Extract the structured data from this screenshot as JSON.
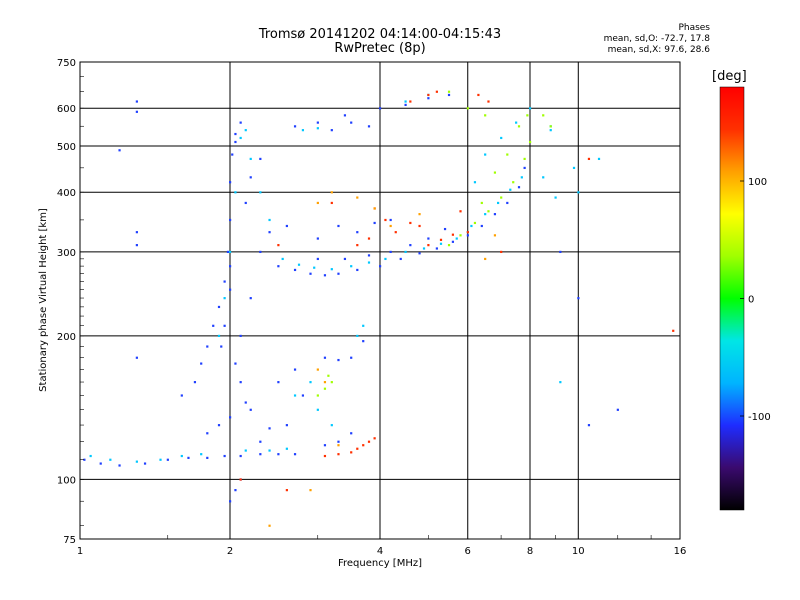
{
  "header": {
    "title_line1": "Tromsø 20141202 04:14:00-04:15:43",
    "title_line2": "RwPretec (8p)",
    "phase_label": "Phases",
    "phase_o": "mean, sd,O: -72.7, 17.8",
    "phase_x": "mean, sd,X:  97.6, 28.6"
  },
  "chart_data": {
    "type": "scatter",
    "xlabel": "Frequency [MHz]",
    "ylabel": "Stationary phase Virtual Height [km]",
    "x_scale": "log",
    "y_scale": "log",
    "xlim": [
      1,
      16
    ],
    "ylim": [
      75,
      750
    ],
    "x_ticks": [
      1,
      2,
      4,
      6,
      8,
      10,
      16
    ],
    "y_ticks": [
      75,
      100,
      200,
      300,
      400,
      500,
      600,
      750
    ],
    "x_grid": [
      2,
      4,
      6,
      8,
      10
    ],
    "y_grid": [
      100,
      200,
      300,
      400,
      500,
      600
    ],
    "grid": true,
    "colorbar": {
      "unit": "[deg]",
      "range": [
        -180,
        180
      ],
      "ticks": [
        100,
        0,
        -100
      ],
      "colormap": [
        "#000000",
        "#3a0a6e",
        "#1e2cff",
        "#00b4ff",
        "#00e6e6",
        "#00ff00",
        "#a0ff00",
        "#ffff00",
        "#ffa000",
        "#ff3000",
        "#ff0000"
      ]
    },
    "series": [
      {
        "values": [
          [
            1.02,
            110
          ],
          [
            1.1,
            108
          ],
          [
            1.2,
            107
          ],
          [
            1.35,
            108
          ],
          [
            1.5,
            110
          ],
          [
            1.65,
            111
          ],
          [
            1.8,
            111
          ],
          [
            1.95,
            112
          ],
          [
            2.1,
            112
          ],
          [
            2.3,
            113
          ],
          [
            2.5,
            113
          ],
          [
            2.7,
            113
          ],
          [
            1.8,
            125
          ],
          [
            1.9,
            130
          ],
          [
            2.0,
            135
          ],
          [
            2.2,
            140
          ],
          [
            2.4,
            128
          ],
          [
            2.6,
            130
          ],
          [
            2.8,
            150
          ],
          [
            2.5,
            160
          ],
          [
            2.7,
            170
          ],
          [
            1.6,
            150
          ],
          [
            1.7,
            160
          ],
          [
            1.75,
            175
          ],
          [
            1.8,
            190
          ],
          [
            1.85,
            210
          ],
          [
            1.9,
            230
          ],
          [
            1.95,
            260
          ],
          [
            1.98,
            300
          ],
          [
            2.0,
            350
          ],
          [
            2.0,
            420
          ],
          [
            2.02,
            480
          ],
          [
            2.05,
            530
          ],
          [
            2.1,
            560
          ],
          [
            2.05,
            510
          ],
          [
            2.0,
            280
          ],
          [
            2.0,
            250
          ],
          [
            1.95,
            210
          ],
          [
            1.92,
            190
          ],
          [
            2.05,
            175
          ],
          [
            2.1,
            160
          ],
          [
            2.15,
            145
          ],
          [
            2.05,
            95
          ],
          [
            2.0,
            90
          ],
          [
            2.1,
            100
          ],
          [
            2.3,
            120
          ],
          [
            2.1,
            200
          ],
          [
            2.2,
            240
          ],
          [
            2.3,
            300
          ],
          [
            2.4,
            330
          ],
          [
            2.6,
            340
          ],
          [
            2.15,
            380
          ],
          [
            2.2,
            430
          ],
          [
            2.3,
            470
          ],
          [
            2.5,
            280
          ],
          [
            2.7,
            275
          ],
          [
            2.9,
            270
          ],
          [
            3.1,
            268
          ],
          [
            3.3,
            270
          ],
          [
            3.6,
            275
          ],
          [
            4.0,
            280
          ],
          [
            4.4,
            290
          ],
          [
            4.8,
            298
          ],
          [
            5.2,
            305
          ],
          [
            5.6,
            315
          ],
          [
            6.0,
            325
          ],
          [
            6.4,
            340
          ],
          [
            6.8,
            360
          ],
          [
            7.2,
            380
          ],
          [
            7.6,
            410
          ],
          [
            7.8,
            450
          ],
          [
            3.0,
            290
          ],
          [
            3.4,
            290
          ],
          [
            3.8,
            295
          ],
          [
            4.2,
            300
          ],
          [
            4.6,
            310
          ],
          [
            5.0,
            320
          ],
          [
            5.4,
            335
          ],
          [
            3.0,
            320
          ],
          [
            3.3,
            340
          ],
          [
            3.6,
            330
          ],
          [
            3.9,
            345
          ],
          [
            4.2,
            350
          ],
          [
            3.2,
            540
          ],
          [
            3.5,
            560
          ],
          [
            3.8,
            550
          ],
          [
            2.7,
            550
          ],
          [
            3.0,
            560
          ],
          [
            3.4,
            580
          ],
          [
            4.0,
            600
          ],
          [
            4.5,
            610
          ],
          [
            5.0,
            630
          ],
          [
            5.5,
            640
          ],
          [
            3.1,
            180
          ],
          [
            3.3,
            178
          ],
          [
            3.5,
            180
          ],
          [
            3.7,
            195
          ],
          [
            3.3,
            120
          ],
          [
            3.5,
            125
          ],
          [
            3.1,
            118
          ],
          [
            1.3,
            330
          ],
          [
            1.3,
            590
          ],
          [
            1.3,
            620
          ],
          [
            1.3,
            310
          ],
          [
            1.3,
            180
          ],
          [
            1.2,
            490
          ],
          [
            9.2,
            300
          ],
          [
            10.5,
            130
          ],
          [
            12.0,
            140
          ],
          [
            10.0,
            240
          ]
        ],
        "color": "#2040ff"
      },
      {
        "values": [
          [
            1.05,
            112
          ],
          [
            1.15,
            110
          ],
          [
            1.3,
            109
          ],
          [
            1.45,
            110
          ],
          [
            1.6,
            112
          ],
          [
            1.75,
            113
          ],
          [
            2.15,
            115
          ],
          [
            2.4,
            115
          ],
          [
            2.6,
            116
          ],
          [
            1.9,
            200
          ],
          [
            1.95,
            240
          ],
          [
            2.0,
            300
          ],
          [
            2.05,
            400
          ],
          [
            2.1,
            520
          ],
          [
            2.15,
            540
          ],
          [
            2.2,
            470
          ],
          [
            2.3,
            400
          ],
          [
            2.4,
            350
          ],
          [
            2.55,
            290
          ],
          [
            2.75,
            282
          ],
          [
            2.95,
            278
          ],
          [
            3.2,
            276
          ],
          [
            3.5,
            280
          ],
          [
            3.8,
            285
          ],
          [
            4.1,
            290
          ],
          [
            4.5,
            300
          ],
          [
            4.9,
            305
          ],
          [
            5.3,
            312
          ],
          [
            5.7,
            320
          ],
          [
            6.1,
            340
          ],
          [
            6.5,
            360
          ],
          [
            6.9,
            380
          ],
          [
            7.3,
            405
          ],
          [
            7.7,
            430
          ],
          [
            2.7,
            150
          ],
          [
            2.9,
            160
          ],
          [
            3.0,
            140
          ],
          [
            3.2,
            130
          ],
          [
            3.6,
            200
          ],
          [
            3.7,
            210
          ],
          [
            2.8,
            540
          ],
          [
            3.0,
            545
          ],
          [
            4.5,
            620
          ],
          [
            5.0,
            640
          ],
          [
            6.0,
            330
          ],
          [
            6.2,
            420
          ],
          [
            6.5,
            480
          ],
          [
            7.0,
            520
          ],
          [
            7.5,
            560
          ],
          [
            8.5,
            430
          ],
          [
            8.8,
            550
          ],
          [
            9.0,
            390
          ],
          [
            9.8,
            450
          ],
          [
            9.2,
            160
          ],
          [
            8.0,
            600
          ],
          [
            8.8,
            540
          ],
          [
            10.0,
            400
          ],
          [
            11.0,
            470
          ]
        ],
        "color": "#00c8ff"
      },
      {
        "values": [
          [
            5.5,
            310
          ],
          [
            5.8,
            325
          ],
          [
            6.2,
            345
          ],
          [
            6.6,
            365
          ],
          [
            7.0,
            390
          ],
          [
            7.4,
            420
          ],
          [
            7.8,
            470
          ],
          [
            8.0,
            510
          ],
          [
            7.2,
            480
          ],
          [
            6.8,
            440
          ],
          [
            7.6,
            550
          ],
          [
            7.9,
            580
          ],
          [
            3.0,
            150
          ],
          [
            3.1,
            155
          ],
          [
            3.2,
            160
          ],
          [
            3.15,
            165
          ],
          [
            6.0,
            600
          ],
          [
            6.5,
            580
          ],
          [
            5.5,
            650
          ],
          [
            8.5,
            580
          ],
          [
            8.8,
            550
          ],
          [
            6.4,
            380
          ]
        ],
        "color": "#a0ff00"
      },
      {
        "values": [
          [
            5.0,
            310
          ],
          [
            5.3,
            318
          ],
          [
            5.6,
            326
          ],
          [
            6.0,
            330
          ],
          [
            5.2,
            650
          ],
          [
            5.0,
            640
          ],
          [
            4.6,
            620
          ],
          [
            6.3,
            640
          ],
          [
            6.6,
            620
          ],
          [
            3.6,
            116
          ],
          [
            3.7,
            118
          ],
          [
            3.8,
            120
          ],
          [
            3.9,
            122
          ],
          [
            3.5,
            114
          ],
          [
            3.3,
            113
          ],
          [
            3.1,
            112
          ],
          [
            2.6,
            95
          ],
          [
            2.1,
            100
          ],
          [
            2.5,
            310
          ],
          [
            3.2,
            380
          ],
          [
            3.9,
            370
          ],
          [
            4.1,
            350
          ],
          [
            4.3,
            330
          ],
          [
            4.6,
            345
          ],
          [
            4.8,
            340
          ],
          [
            10.5,
            470
          ],
          [
            15.5,
            205
          ],
          [
            3.6,
            310
          ],
          [
            3.8,
            320
          ],
          [
            5.8,
            365
          ],
          [
            7.0,
            300
          ]
        ],
        "color": "#ff3000"
      },
      {
        "values": [
          [
            3.0,
            380
          ],
          [
            3.2,
            400
          ],
          [
            3.6,
            390
          ],
          [
            3.9,
            370
          ],
          [
            4.2,
            340
          ],
          [
            4.8,
            360
          ],
          [
            3.0,
            170
          ],
          [
            3.1,
            160
          ],
          [
            2.9,
            95
          ],
          [
            2.4,
            80
          ],
          [
            3.3,
            118
          ],
          [
            6.5,
            290
          ],
          [
            6.8,
            325
          ]
        ],
        "color": "#ffa000"
      }
    ]
  }
}
